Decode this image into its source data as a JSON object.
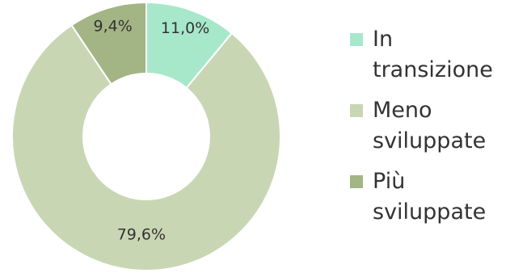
{
  "chart_data": {
    "type": "pie",
    "style": "donut",
    "slices": [
      {
        "label": "In transizione",
        "value": 11.0,
        "value_label": "11,0%",
        "color": "#a7e8cb"
      },
      {
        "label": "Meno sviluppate",
        "value": 79.6,
        "value_label": "79,6%",
        "color": "#c8d6b4"
      },
      {
        "label": "Più sviluppate",
        "value": 9.4,
        "value_label": "9,4%",
        "color": "#a3b584"
      }
    ],
    "legend": {
      "position": "right",
      "entries": [
        {
          "lines": [
            "In",
            "transizione"
          ],
          "color": "#a7e8cb"
        },
        {
          "lines": [
            "Meno",
            "sviluppate"
          ],
          "color": "#c8d6b4"
        },
        {
          "lines": [
            "Più",
            "sviluppate"
          ],
          "color": "#a3b584"
        }
      ]
    }
  }
}
